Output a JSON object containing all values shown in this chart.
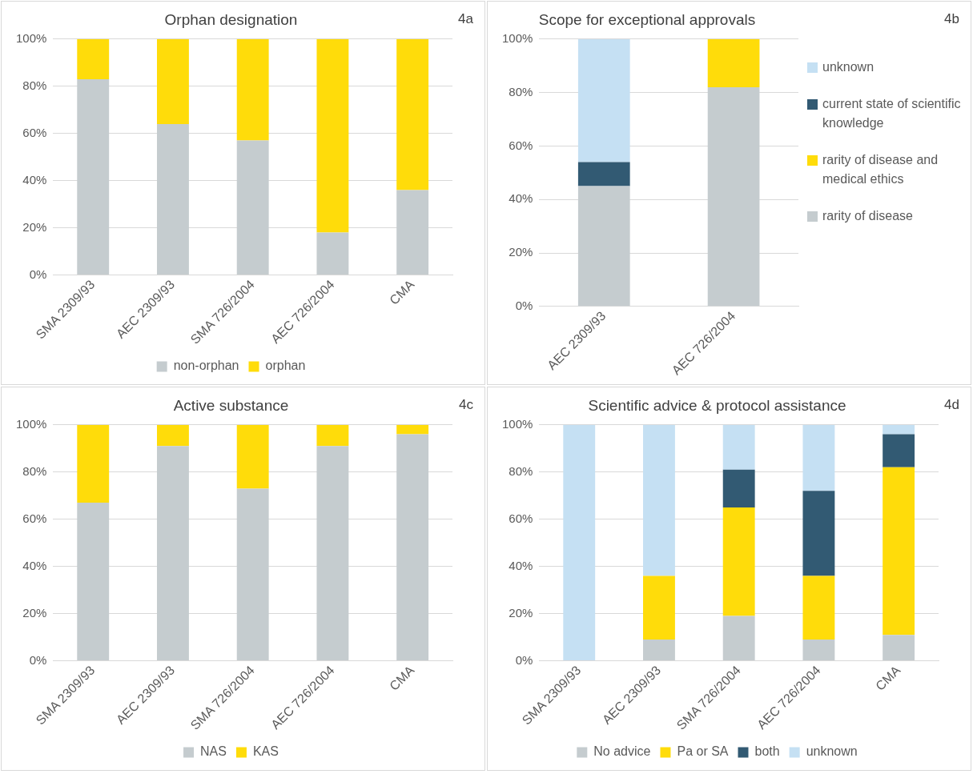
{
  "chart_data": [
    {
      "type": "bar",
      "title": "Orphan designation",
      "annotations": [
        "4a"
      ],
      "stacked": true,
      "categories": [
        "SMA 2309/93",
        "AEC 2309/93",
        "SMA 726/2004",
        "AEC 726/2004",
        "CMA"
      ],
      "series": [
        {
          "name": "non-orphan",
          "color": "#c5cccf",
          "values": [
            83,
            64,
            57,
            18,
            36
          ]
        },
        {
          "name": "orphan",
          "color": "#ffdc0a",
          "values": [
            17,
            36,
            43,
            82,
            64
          ]
        }
      ],
      "ylim": [
        0,
        100
      ],
      "yticks": [
        {
          "value": 0,
          "label": "0%"
        },
        {
          "value": 20,
          "label": "20%"
        },
        {
          "value": 40,
          "label": "40%"
        },
        {
          "value": 60,
          "label": "60%"
        },
        {
          "value": 80,
          "label": "80%"
        },
        {
          "value": 100,
          "label": "100%"
        }
      ],
      "grid": "y",
      "legend": "bottom"
    },
    {
      "type": "bar",
      "title": "Scope for exceptional approvals",
      "annotations": [
        "4b"
      ],
      "stacked": true,
      "categories": [
        "AEC 2309/93",
        "AEC 726/2004"
      ],
      "series": [
        {
          "name": "rarity of disease",
          "color": "#c5cccf",
          "values": [
            45,
            82
          ]
        },
        {
          "name": "rarity of disease and medical ethics",
          "color": "#ffdc0a",
          "values": [
            0,
            18
          ]
        },
        {
          "name": "current state of scientific knowledge",
          "color": "#325a73",
          "values": [
            9,
            0
          ]
        },
        {
          "name": "unknown",
          "color": "#c5e0f3",
          "values": [
            46,
            0
          ]
        }
      ],
      "ylim": [
        0,
        100
      ],
      "yticks": [
        {
          "value": 0,
          "label": "0%"
        },
        {
          "value": 20,
          "label": "20%"
        },
        {
          "value": 40,
          "label": "40%"
        },
        {
          "value": 60,
          "label": "60%"
        },
        {
          "value": 80,
          "label": "80%"
        },
        {
          "value": 100,
          "label": "100%"
        }
      ],
      "grid": "y",
      "legend": "right"
    },
    {
      "type": "bar",
      "title": "Active substance",
      "annotations": [
        "4c"
      ],
      "stacked": true,
      "categories": [
        "SMA 2309/93",
        "AEC 2309/93",
        "SMA 726/2004",
        "AEC 726/2004",
        "CMA"
      ],
      "series": [
        {
          "name": "NAS",
          "color": "#c5cccf",
          "values": [
            67,
            91,
            73,
            91,
            96
          ]
        },
        {
          "name": "KAS",
          "color": "#ffdc0a",
          "values": [
            33,
            9,
            27,
            9,
            4
          ]
        }
      ],
      "ylim": [
        0,
        100
      ],
      "yticks": [
        {
          "value": 0,
          "label": "0%"
        },
        {
          "value": 20,
          "label": "20%"
        },
        {
          "value": 40,
          "label": "40%"
        },
        {
          "value": 60,
          "label": "60%"
        },
        {
          "value": 80,
          "label": "80%"
        },
        {
          "value": 100,
          "label": "100%"
        }
      ],
      "grid": "y",
      "legend": "bottom"
    },
    {
      "type": "bar",
      "title": "Scientific advice & protocol assistance",
      "annotations": [
        "4d"
      ],
      "stacked": true,
      "categories": [
        "SMA 2309/93",
        "AEC 2309/93",
        "SMA 726/2004",
        "AEC 726/2004",
        "CMA"
      ],
      "series": [
        {
          "name": "No advice",
          "color": "#c5cccf",
          "values": [
            0,
            9,
            19,
            9,
            11
          ]
        },
        {
          "name": "Pa or SA",
          "color": "#ffdc0a",
          "values": [
            0,
            27,
            46,
            27,
            71
          ]
        },
        {
          "name": "both",
          "color": "#325a73",
          "values": [
            0,
            0,
            16,
            36,
            14
          ]
        },
        {
          "name": "unknown",
          "color": "#c5e0f3",
          "values": [
            100,
            64,
            19,
            28,
            4
          ]
        }
      ],
      "ylim": [
        0,
        100
      ],
      "yticks": [
        {
          "value": 0,
          "label": "0%"
        },
        {
          "value": 20,
          "label": "20%"
        },
        {
          "value": 40,
          "label": "40%"
        },
        {
          "value": 60,
          "label": "60%"
        },
        {
          "value": 80,
          "label": "80%"
        },
        {
          "value": 100,
          "label": "100%"
        }
      ],
      "grid": "y",
      "legend": "bottom"
    }
  ]
}
